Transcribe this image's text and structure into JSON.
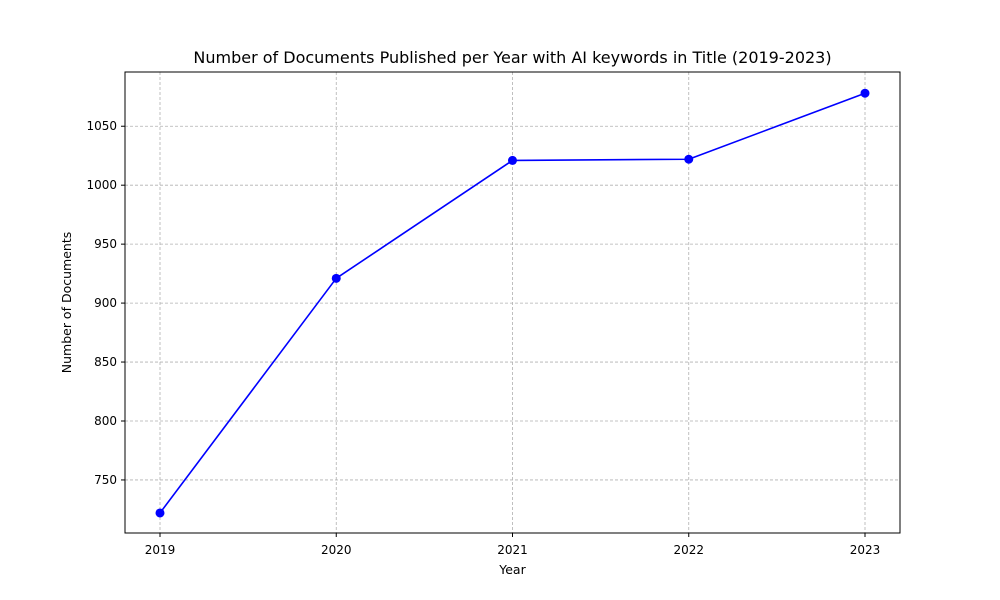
{
  "chart_data": {
    "type": "line",
    "title": "Number of Documents Published per Year with AI keywords in Title (2019-2023)",
    "xlabel": "Year",
    "ylabel": "Number of Documents",
    "x": [
      "2019",
      "2020",
      "2021",
      "2022",
      "2023"
    ],
    "series": [
      {
        "values": [
          722,
          921,
          1021,
          1022,
          1078
        ],
        "color": "#0000ff",
        "marker": "circle"
      }
    ],
    "yticks": [
      750,
      800,
      850,
      900,
      950,
      1000,
      1050
    ],
    "ylim": [
      705,
      1096
    ],
    "grid": true,
    "legend": "none"
  }
}
